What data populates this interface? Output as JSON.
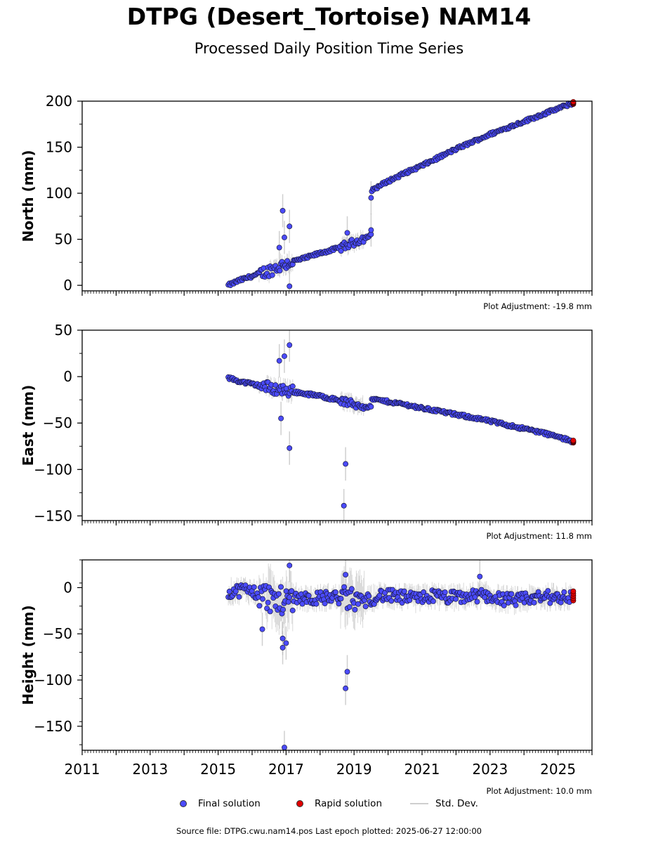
{
  "title": "DTPG (Desert_Tortoise) NAM14",
  "subtitle": "Processed Daily Position Time Series",
  "footer": "Source file: DTPG.cwu.nam14.pos  Last epoch plotted: 2025-06-27 12:00:00",
  "legend": {
    "final": "Final solution",
    "rapid": "Rapid solution",
    "std": "Std. Dev."
  },
  "colors": {
    "final": "#4b4bff",
    "rapid": "#e00000",
    "std": "#bbbbbb"
  },
  "chart_data": [
    {
      "type": "scatter",
      "ylabel": "North (mm)",
      "xlim": [
        2011,
        2026
      ],
      "ylim": [
        -6,
        200
      ],
      "yticks": [
        0,
        50,
        100,
        150,
        200
      ],
      "adjustment": "Plot Adjustment: -19.8 mm",
      "series": [
        {
          "name": "Final solution",
          "x": [
            2015.3,
            2015.6,
            2016.0,
            2016.5,
            2016.9,
            2017.2,
            2017.6,
            2018.0,
            2018.5,
            2018.9,
            2019.2,
            2019.5
          ],
          "y": [
            0,
            5,
            10,
            16,
            22,
            26,
            30,
            35,
            40,
            45,
            50,
            54
          ]
        },
        {
          "name": "Final solution",
          "x": [
            2019.5,
            2020.0,
            2020.5,
            2021.0,
            2021.5,
            2022.0,
            2022.5,
            2023.0,
            2023.5,
            2024.0,
            2024.5,
            2025.0,
            2025.45
          ],
          "y": [
            103,
            113,
            122,
            130,
            139,
            148,
            156,
            164,
            171,
            178,
            185,
            192,
            198
          ]
        },
        {
          "name": "Rapid solution",
          "x": [
            2025.45
          ],
          "y": [
            198
          ]
        }
      ],
      "outliers": [
        [
          2016.9,
          81
        ],
        [
          2017.1,
          64
        ],
        [
          2017.1,
          -1
        ],
        [
          2016.95,
          52
        ],
        [
          2016.8,
          41
        ],
        [
          2019.5,
          95
        ],
        [
          2018.8,
          57
        ],
        [
          2019.5,
          60
        ]
      ]
    },
    {
      "type": "scatter",
      "ylabel": "East (mm)",
      "xlim": [
        2011,
        2026
      ],
      "ylim": [
        -155,
        50
      ],
      "yticks": [
        -150,
        -100,
        -50,
        0,
        50
      ],
      "adjustment": "Plot Adjustment: 11.8 mm",
      "series": [
        {
          "name": "Final solution",
          "x": [
            2015.3,
            2015.6,
            2016.0,
            2016.5,
            2017.0,
            2017.5,
            2018.0,
            2018.5,
            2019.0,
            2019.5
          ],
          "y": [
            -1,
            -5,
            -8,
            -12,
            -15,
            -18,
            -21,
            -25,
            -30,
            -33
          ]
        },
        {
          "name": "Final solution",
          "x": [
            2019.5,
            2020.0,
            2020.5,
            2021.0,
            2021.5,
            2022.0,
            2022.5,
            2023.0,
            2023.5,
            2024.0,
            2024.5,
            2025.0,
            2025.45
          ],
          "y": [
            -24,
            -27,
            -30,
            -34,
            -37,
            -41,
            -44,
            -48,
            -52,
            -56,
            -60,
            -65,
            -70
          ]
        },
        {
          "name": "Rapid solution",
          "x": [
            2025.45
          ],
          "y": [
            -70
          ]
        }
      ],
      "outliers": [
        [
          2016.8,
          17
        ],
        [
          2016.95,
          22
        ],
        [
          2017.1,
          34
        ],
        [
          2017.1,
          -77
        ],
        [
          2018.75,
          -94
        ],
        [
          2018.7,
          -139
        ],
        [
          2016.85,
          -45
        ]
      ]
    },
    {
      "type": "scatter",
      "ylabel": "Height (mm)",
      "xlim": [
        2011,
        2026
      ],
      "ylim": [
        -176,
        30
      ],
      "yticks": [
        -150,
        -100,
        -50,
        0
      ],
      "xticks": [
        2011,
        2013,
        2015,
        2017,
        2019,
        2021,
        2023,
        2025
      ],
      "adjustment": "Plot Adjustment: 10.0 mm",
      "series": [
        {
          "name": "Final solution",
          "x": [
            2015.3,
            2015.8,
            2016.3,
            2016.8,
            2017.3,
            2017.8,
            2018.3,
            2018.8,
            2019.3,
            2019.8,
            2020.3,
            2020.8,
            2021.3,
            2021.8,
            2022.3,
            2022.8,
            2023.3,
            2023.8,
            2024.3,
            2024.8,
            2025.4
          ],
          "y": [
            -5,
            -2,
            -8,
            -15,
            -10,
            -12,
            -10,
            -12,
            -15,
            -8,
            -10,
            -12,
            -9,
            -11,
            -10,
            -8,
            -12,
            -14,
            -11,
            -10,
            -10
          ]
        },
        {
          "name": "Rapid solution",
          "x": [
            2025.45
          ],
          "y": [
            -9
          ]
        }
      ],
      "outliers": [
        [
          2016.95,
          -173
        ],
        [
          2018.75,
          -109
        ],
        [
          2018.8,
          -91
        ],
        [
          2016.9,
          -65
        ],
        [
          2016.9,
          -55
        ],
        [
          2017.0,
          -60
        ],
        [
          2016.3,
          -45
        ],
        [
          2018.75,
          14
        ],
        [
          2017.1,
          24
        ],
        [
          2022.7,
          12
        ]
      ]
    }
  ]
}
